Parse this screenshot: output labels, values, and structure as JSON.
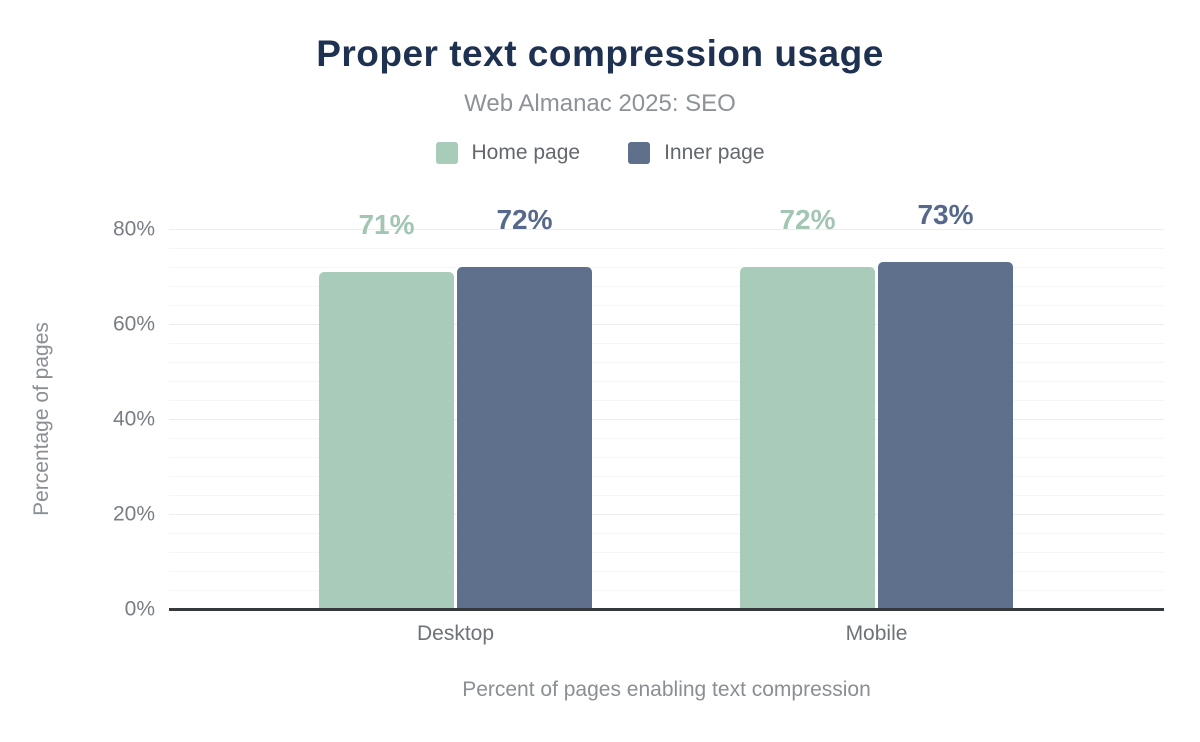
{
  "page": {
    "title": "Proper text compression usage",
    "subtitle": "Web Almanac 2025: SEO"
  },
  "chart_data": {
    "type": "bar",
    "title": "Proper text compression usage",
    "subtitle": "Web Almanac 2025: SEO",
    "categories": [
      "Desktop",
      "Mobile"
    ],
    "series": [
      {
        "name": "Home page",
        "values": [
          71,
          72
        ],
        "bar_color": "#a9cbba",
        "label_color": "#a3c6b3"
      },
      {
        "name": "Inner page",
        "values": [
          72,
          73
        ],
        "bar_color": "#5f708d",
        "label_color": "#56688c"
      }
    ],
    "data_labels": [
      [
        "71%",
        "72%"
      ],
      [
        "72%",
        "73%"
      ]
    ],
    "value_suffix": "%",
    "ylabel": "Percentage of pages",
    "xlabel": "Percent of pages enabling text compression",
    "ylim": [
      0,
      80
    ],
    "yticks": [
      0,
      20,
      40,
      60,
      80
    ],
    "ytick_labels": [
      "0%",
      "20%",
      "40%",
      "60%",
      "80%"
    ],
    "minor_grid_step_pct": 4,
    "grid": true,
    "legend_position": "top"
  },
  "colors": {
    "title": "#1e3150",
    "subtitle": "#8d9298",
    "legend_text": "#63686e",
    "tick_text": "#797e84",
    "category_text": "#6e7378",
    "axis_title_text": "#8a8f94",
    "axis_line": "#35383d",
    "grid_major": "#ededef",
    "grid_minor": "#f6f6f7",
    "background": "#ffffff"
  }
}
